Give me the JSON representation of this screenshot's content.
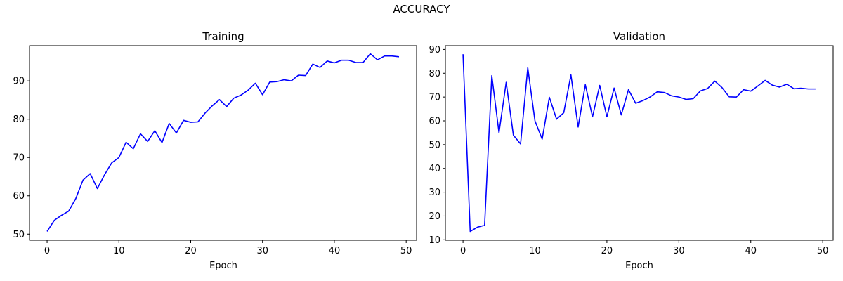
{
  "figure": {
    "suptitle": "ACCURACY"
  },
  "chart_data": [
    {
      "type": "line",
      "title": "Training",
      "xlabel": "Epoch",
      "ylabel": "",
      "xlim": [
        -2.45,
        51.45
      ],
      "ylim": [
        48.4,
        99.2
      ],
      "xticks": [
        0,
        10,
        20,
        30,
        40,
        50
      ],
      "yticks": [
        50,
        60,
        70,
        80,
        90
      ],
      "grid": false,
      "series": [
        {
          "color": "#0000ff",
          "x": [
            0,
            1,
            2,
            3,
            4,
            5,
            6,
            7,
            8,
            9,
            10,
            11,
            12,
            13,
            14,
            15,
            16,
            17,
            18,
            19,
            20,
            21,
            22,
            23,
            24,
            25,
            26,
            27,
            28,
            29,
            30,
            31,
            32,
            33,
            34,
            35,
            36,
            37,
            38,
            39,
            40,
            41,
            42,
            43,
            44,
            45,
            46,
            47,
            48,
            49
          ],
          "y": [
            50.7,
            53.6,
            54.9,
            56.0,
            59.3,
            64.1,
            65.8,
            61.9,
            65.5,
            68.6,
            70.0,
            74.0,
            72.3,
            76.2,
            74.2,
            77.0,
            73.9,
            78.9,
            76.4,
            79.7,
            79.2,
            79.3,
            81.6,
            83.5,
            85.1,
            83.3,
            85.5,
            86.3,
            87.6,
            89.4,
            86.4,
            89.7,
            89.8,
            90.3,
            90.0,
            91.5,
            91.4,
            94.4,
            93.5,
            95.2,
            94.7,
            95.4,
            95.4,
            94.8,
            94.8,
            97.1,
            95.5,
            96.5,
            96.5,
            96.3
          ]
        }
      ]
    },
    {
      "type": "line",
      "title": "Validation",
      "xlabel": "Epoch",
      "ylabel": "",
      "xlim": [
        -2.45,
        51.45
      ],
      "ylim": [
        9.8,
        91.6
      ],
      "xticks": [
        0,
        10,
        20,
        30,
        40,
        50
      ],
      "yticks": [
        10,
        20,
        30,
        40,
        50,
        60,
        70,
        80,
        90
      ],
      "grid": false,
      "series": [
        {
          "color": "#0000ff",
          "x": [
            0,
            1,
            2,
            3,
            4,
            5,
            6,
            7,
            8,
            9,
            10,
            11,
            12,
            13,
            14,
            15,
            16,
            17,
            18,
            19,
            20,
            21,
            22,
            23,
            24,
            25,
            26,
            27,
            28,
            29,
            30,
            31,
            32,
            33,
            34,
            35,
            36,
            37,
            38,
            39,
            40,
            41,
            42,
            43,
            44,
            45,
            46,
            47,
            48,
            49
          ],
          "y": [
            88.0,
            13.5,
            15.3,
            16.1,
            79.0,
            55.0,
            76.2,
            54.0,
            50.3,
            82.3,
            60.0,
            52.3,
            69.9,
            60.7,
            63.4,
            79.3,
            57.4,
            75.2,
            61.7,
            74.9,
            61.7,
            73.8,
            62.5,
            73.1,
            67.4,
            68.5,
            70.0,
            72.2,
            71.9,
            70.5,
            70.0,
            69.0,
            69.3,
            72.6,
            73.6,
            76.7,
            74.0,
            70.1,
            70.0,
            73.1,
            72.5,
            74.7,
            77.0,
            75.0,
            74.2,
            75.4,
            73.5,
            73.7,
            73.4,
            73.4
          ]
        }
      ]
    }
  ]
}
